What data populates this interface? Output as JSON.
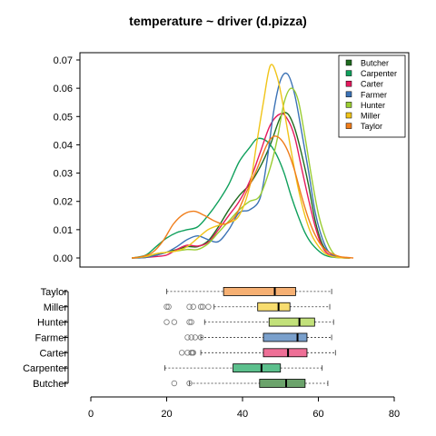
{
  "title": "temperature ~ driver (d.pizza)",
  "chart_data": [
    {
      "type": "area",
      "subtype": "density",
      "title": "temperature ~ driver (d.pizza)",
      "xlim": [
        0,
        80
      ],
      "ylim": [
        0,
        0.07
      ],
      "y_ticks": [
        0.0,
        0.01,
        0.02,
        0.03,
        0.04,
        0.05,
        0.06,
        0.07
      ],
      "y_tick_labels": [
        "0.00",
        "0.01",
        "0.02",
        "0.03",
        "0.04",
        "0.05",
        "0.06",
        "0.07"
      ],
      "legend_position": "top-right",
      "series": [
        {
          "name": "Butcher",
          "color": "#1F6B1F",
          "x": [
            10,
            14,
            17,
            20,
            23,
            26,
            29,
            32,
            35,
            38,
            41,
            44,
            47,
            50,
            53,
            55,
            57,
            59,
            61,
            63,
            65,
            67,
            70,
            73
          ],
          "y": [
            0,
            0.0002,
            0.001,
            0.002,
            0.003,
            0.004,
            0.004,
            0.006,
            0.011,
            0.017,
            0.022,
            0.026,
            0.032,
            0.04,
            0.05,
            0.051,
            0.046,
            0.037,
            0.026,
            0.013,
            0.005,
            0.002,
            0.0003,
            0
          ]
        },
        {
          "name": "Carpenter",
          "color": "#0FA05C",
          "x": [
            10,
            14,
            17,
            20,
            23,
            26,
            29,
            32,
            35,
            38,
            41,
            44,
            46,
            48,
            50,
            52,
            54,
            56,
            58,
            60,
            62,
            65,
            67,
            70,
            73
          ],
          "y": [
            0,
            0.001,
            0.004,
            0.007,
            0.009,
            0.01,
            0.011,
            0.015,
            0.02,
            0.026,
            0.034,
            0.039,
            0.042,
            0.042,
            0.04,
            0.036,
            0.03,
            0.022,
            0.015,
            0.009,
            0.005,
            0.0015,
            0.0005,
            0.0001,
            0
          ]
        },
        {
          "name": "Carter",
          "color": "#E41A5E",
          "x": [
            10,
            14,
            17,
            20,
            23,
            26,
            29,
            32,
            35,
            38,
            41,
            44,
            47,
            50,
            53,
            55,
            57,
            59,
            61,
            63,
            65,
            67,
            70,
            73
          ],
          "y": [
            0,
            0.0002,
            0.0005,
            0.001,
            0.003,
            0.0045,
            0.0042,
            0.0055,
            0.01,
            0.015,
            0.02,
            0.027,
            0.037,
            0.047,
            0.051,
            0.049,
            0.043,
            0.032,
            0.021,
            0.011,
            0.004,
            0.0012,
            0.0002,
            0
          ]
        },
        {
          "name": "Farmer",
          "color": "#3B72B5",
          "x": [
            10,
            14,
            17,
            20,
            23,
            26,
            29,
            32,
            35,
            38,
            41,
            44,
            47,
            49,
            51,
            53,
            55,
            57,
            59,
            61,
            63,
            65,
            67,
            70,
            73
          ],
          "y": [
            0,
            0.0002,
            0.001,
            0.002,
            0.004,
            0.0065,
            0.0078,
            0.0065,
            0.0058,
            0.01,
            0.016,
            0.017,
            0.021,
            0.034,
            0.052,
            0.063,
            0.065,
            0.058,
            0.045,
            0.031,
            0.016,
            0.007,
            0.002,
            0.0002,
            0
          ]
        },
        {
          "name": "Hunter",
          "color": "#9ACD32",
          "x": [
            10,
            14,
            17,
            20,
            23,
            26,
            29,
            32,
            35,
            38,
            41,
            44,
            47,
            50,
            52,
            54,
            56,
            58,
            60,
            62,
            64,
            66,
            68,
            70,
            73
          ],
          "y": [
            0,
            0.0005,
            0.0015,
            0.002,
            0.0025,
            0.003,
            0.003,
            0.005,
            0.009,
            0.013,
            0.017,
            0.02,
            0.022,
            0.032,
            0.042,
            0.055,
            0.06,
            0.056,
            0.043,
            0.028,
            0.015,
            0.007,
            0.002,
            0.0003,
            0
          ]
        },
        {
          "name": "Miller",
          "color": "#F0C419",
          "x": [
            10,
            14,
            17,
            20,
            23,
            26,
            29,
            32,
            35,
            38,
            41,
            44,
            46,
            48,
            50,
            52,
            54,
            56,
            58,
            60,
            62,
            64,
            66,
            68,
            70,
            73
          ],
          "y": [
            0,
            0.0005,
            0.0015,
            0.002,
            0.0025,
            0.004,
            0.007,
            0.01,
            0.0115,
            0.0125,
            0.015,
            0.025,
            0.04,
            0.055,
            0.068,
            0.064,
            0.052,
            0.038,
            0.025,
            0.015,
            0.008,
            0.004,
            0.0015,
            0.0005,
            0.0001,
            0
          ]
        },
        {
          "name": "Taylor",
          "color": "#F07D1A",
          "x": [
            10,
            13,
            16,
            19,
            22,
            25,
            28,
            31,
            34,
            37,
            40,
            43,
            46,
            49,
            51,
            53,
            55,
            57,
            59,
            61,
            63,
            65,
            67,
            70,
            72,
            74
          ],
          "y": [
            0,
            0.0005,
            0.002,
            0.006,
            0.012,
            0.0155,
            0.0165,
            0.015,
            0.013,
            0.012,
            0.015,
            0.023,
            0.031,
            0.04,
            0.043,
            0.042,
            0.038,
            0.031,
            0.022,
            0.014,
            0.008,
            0.004,
            0.002,
            0.0005,
            0.0002,
            0
          ]
        }
      ]
    },
    {
      "type": "box",
      "xlim": [
        0,
        80
      ],
      "x_ticks": [
        0,
        20,
        40,
        60,
        80
      ],
      "x_tick_labels": [
        "0",
        "20",
        "40",
        "60",
        "80"
      ],
      "categories": [
        "Butcher",
        "Carpenter",
        "Carter",
        "Farmer",
        "Hunter",
        "Miller",
        "Taylor"
      ],
      "boxes": [
        {
          "name": "Butcher",
          "color": "#6BA36B",
          "whisker_low": 26,
          "q1": 44.5,
          "median": 51.5,
          "q3": 56.5,
          "whisker_high": 62.5,
          "outliers": [
            22,
            26
          ]
        },
        {
          "name": "Carpenter",
          "color": "#5CC08D",
          "whisker_low": 19.5,
          "q1": 37.5,
          "median": 45,
          "q3": 50,
          "whisker_high": 61,
          "outliers": []
        },
        {
          "name": "Carter",
          "color": "#EE6F96",
          "whisker_low": 29,
          "q1": 45.5,
          "median": 52,
          "q3": 57,
          "whisker_high": 64.5,
          "outliers": [
            24,
            25.5,
            26.5,
            27,
            26.8
          ]
        },
        {
          "name": "Farmer",
          "color": "#7AA0CC",
          "whisker_low": 29,
          "q1": 45.5,
          "median": 54.5,
          "q3": 57,
          "whisker_high": 63.5,
          "outliers": [
            25.5,
            26.5,
            27.5,
            29
          ]
        },
        {
          "name": "Hunter",
          "color": "#C2E17A",
          "whisker_low": 30,
          "q1": 47,
          "median": 55,
          "q3": 59,
          "whisker_high": 64,
          "outliers": [
            20,
            22,
            26,
            26.5
          ]
        },
        {
          "name": "Miller",
          "color": "#F7DC6F",
          "whisker_low": 32.5,
          "q1": 44,
          "median": 49.5,
          "q3": 52.5,
          "whisker_high": 63,
          "outliers": [
            20.5,
            20,
            26,
            27,
            29,
            29.5,
            31
          ]
        },
        {
          "name": "Taylor",
          "color": "#F6B073",
          "whisker_low": 20,
          "q1": 35,
          "median": 48.5,
          "q3": 54,
          "whisker_high": 63.5,
          "outliers": []
        }
      ]
    }
  ]
}
